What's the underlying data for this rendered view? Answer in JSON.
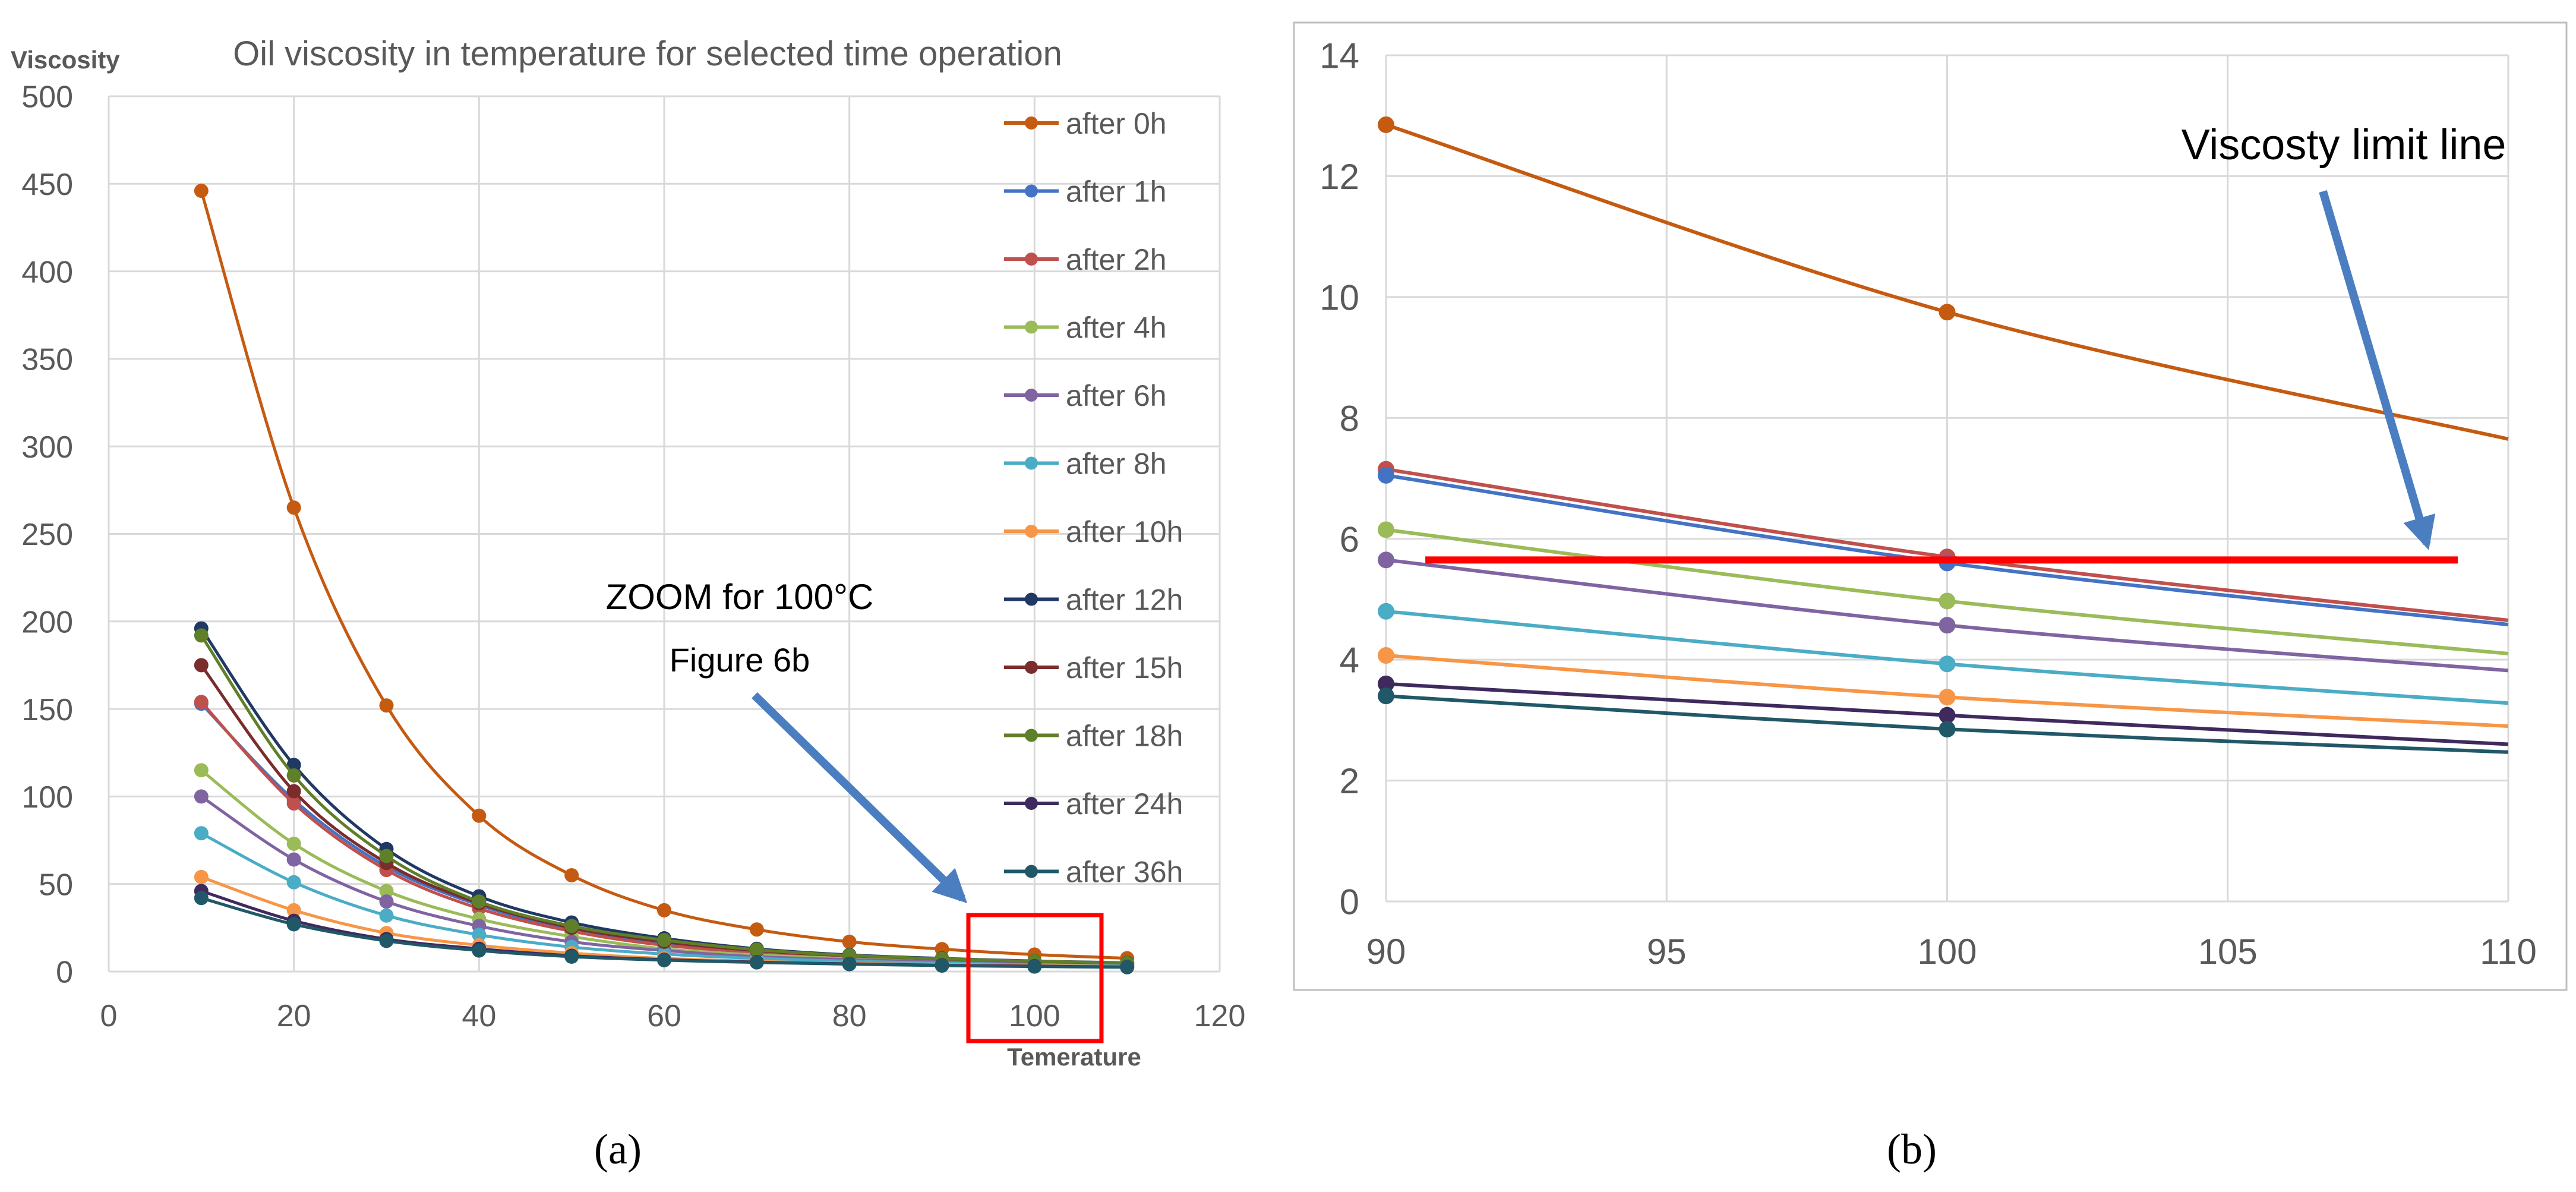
{
  "chart_data": [
    {
      "id": "a",
      "type": "line",
      "title": "Oil viscosity in temperature for selected time operation",
      "xlabel": "Temerature",
      "ylabel": "Viscosity",
      "xlim": [
        0,
        120
      ],
      "ylim": [
        0,
        500
      ],
      "xticks": [
        "0",
        "20",
        "40",
        "60",
        "80",
        "100",
        "120"
      ],
      "yticks": [
        "0",
        "50",
        "100",
        "150",
        "200",
        "250",
        "300",
        "350",
        "400",
        "450",
        "500"
      ],
      "grid": true,
      "legend": "right",
      "x": [
        10,
        20,
        30,
        40,
        50,
        60,
        70,
        80,
        90,
        100,
        110
      ],
      "series": [
        {
          "name": "after 0h",
          "color": "#C55A11",
          "values": [
            446,
            265,
            152,
            89,
            55,
            35,
            24,
            17,
            12.8,
            9.7,
            7.6
          ]
        },
        {
          "name": "after 1h",
          "color": "#4472C4",
          "values": [
            153,
            98,
            60,
            38,
            24,
            16,
            11,
            8.5,
            7.0,
            5.6,
            4.6
          ]
        },
        {
          "name": "after 2h",
          "color": "#C0504D",
          "values": [
            154,
            96,
            58,
            36,
            23,
            15,
            11,
            8.5,
            7.1,
            5.7,
            4.6
          ]
        },
        {
          "name": "after 4h",
          "color": "#9BBB59",
          "values": [
            115,
            73,
            46,
            30,
            20,
            13,
            9.5,
            7.4,
            6.1,
            4.9,
            4.1
          ]
        },
        {
          "name": "after 6h",
          "color": "#8064A2",
          "values": [
            100,
            64,
            40,
            26,
            17,
            12,
            8.5,
            6.8,
            5.6,
            4.5,
            3.8
          ]
        },
        {
          "name": "after 8h",
          "color": "#4BACC6",
          "values": [
            79,
            51,
            32,
            21,
            14,
            10,
            7.5,
            5.9,
            4.8,
            3.9,
            3.3
          ]
        },
        {
          "name": "after 10h",
          "color": "#F79646",
          "values": [
            54,
            35,
            22,
            15,
            10.5,
            7.5,
            5.8,
            4.6,
            4.0,
            3.4,
            2.9
          ]
        },
        {
          "name": "after 12h",
          "color": "#1F3864",
          "values": [
            196,
            118,
            70,
            43,
            28,
            19,
            13,
            9.5,
            7.5,
            6.0,
            5.0
          ]
        },
        {
          "name": "after 15h",
          "color": "#7B2C2C",
          "values": [
            175,
            103,
            62,
            39,
            25,
            17,
            12,
            9.0,
            7.2,
            5.8,
            4.8
          ]
        },
        {
          "name": "after 18h",
          "color": "#5F7F28",
          "values": [
            192,
            112,
            66,
            40,
            26,
            18,
            12.5,
            9.2,
            7.3,
            5.9,
            4.9
          ]
        },
        {
          "name": "after 24h",
          "color": "#3F2A5E",
          "values": [
            46,
            29,
            18.5,
            13,
            9,
            6.8,
            5.4,
            4.4,
            3.6,
            3.1,
            2.6
          ]
        },
        {
          "name": "after 36h",
          "color": "#215868",
          "values": [
            42,
            27,
            17.5,
            12,
            8.5,
            6.5,
            5.2,
            4.2,
            3.4,
            2.85,
            2.45
          ]
        }
      ],
      "annotations": {
        "zoom_line1": "ZOOM for 100°C",
        "zoom_line2": "Figure 6b"
      },
      "caption": "(a)"
    },
    {
      "id": "b",
      "type": "line",
      "title": "",
      "xlim": [
        90,
        110
      ],
      "ylim": [
        0,
        14
      ],
      "xticks": [
        "90",
        "95",
        "100",
        "105",
        "110"
      ],
      "yticks": [
        "0",
        "2",
        "4",
        "6",
        "8",
        "10",
        "12",
        "14"
      ],
      "grid": true,
      "x": [
        90,
        100,
        110
      ],
      "series": [
        {
          "name": "after 0h",
          "color": "#C55A11",
          "values": [
            12.85,
            9.75,
            7.65
          ]
        },
        {
          "name": "after 2h",
          "color": "#C0504D",
          "values": [
            7.15,
            5.7,
            4.65
          ]
        },
        {
          "name": "after 1h",
          "color": "#4472C4",
          "values": [
            7.05,
            5.6,
            4.58
          ]
        },
        {
          "name": "after 4h",
          "color": "#9BBB59",
          "values": [
            6.15,
            4.97,
            4.1
          ]
        },
        {
          "name": "after 6h",
          "color": "#8064A2",
          "values": [
            5.65,
            4.57,
            3.82
          ]
        },
        {
          "name": "after 8h",
          "color": "#4BACC6",
          "values": [
            4.8,
            3.93,
            3.28
          ]
        },
        {
          "name": "after 10h",
          "color": "#F79646",
          "values": [
            4.07,
            3.38,
            2.9
          ]
        },
        {
          "name": "after 24h",
          "color": "#3F2A5E",
          "values": [
            3.6,
            3.08,
            2.6
          ]
        },
        {
          "name": "after 36h",
          "color": "#215868",
          "values": [
            3.4,
            2.85,
            2.47
          ]
        }
      ],
      "limit_line": {
        "value": 5.65,
        "from": 90.7,
        "to": 109.1,
        "color": "#FF0000"
      },
      "annotations": {
        "limit_label": "Viscosty limit line"
      },
      "caption": "(b)"
    }
  ]
}
